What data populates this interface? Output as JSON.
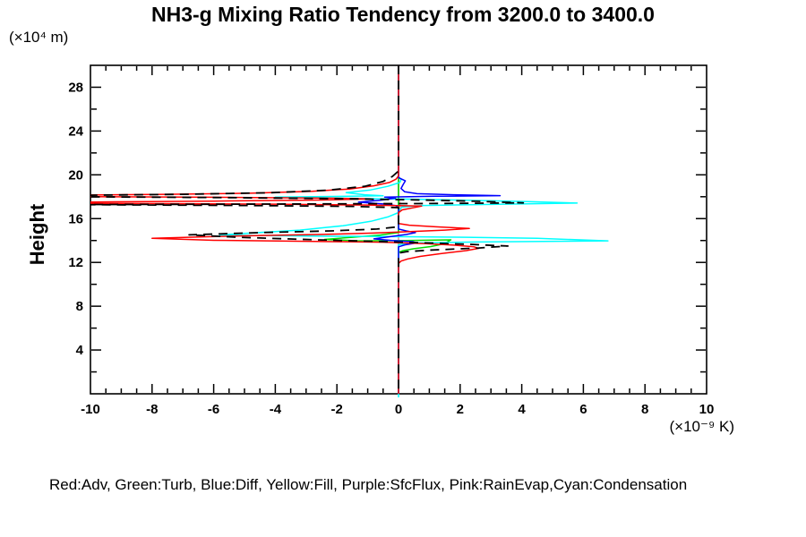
{
  "page": {
    "background": "#ffffff"
  },
  "chart_data": {
    "type": "line",
    "title": "NH3-g Mixing Ratio Tendency from 3200.0 to 3400.0",
    "ylabel": "Height",
    "y_axis_unit_label": "(×10⁴ m)",
    "x_axis_unit_label": "(×10⁻⁹ K)",
    "xlim": [
      -10,
      10
    ],
    "ylim": [
      0,
      30
    ],
    "x_major_tick_step": 2,
    "x_minor_tick_step": 0.5,
    "y_major_tick_step": 4,
    "y_minor_tick_step": 2,
    "x_tick_labels": [
      -10,
      -8,
      -6,
      -4,
      -2,
      0,
      2,
      4,
      6,
      8,
      10
    ],
    "y_tick_labels": [
      4,
      8,
      12,
      16,
      20,
      24,
      28
    ],
    "axis_color": "#000000",
    "zero_line": {
      "x": 0,
      "color": "#00ffff"
    },
    "legend_caption": "Red:Adv, Green:Turb, Blue:Diff, Yellow:Fill, Purple:SfcFlux, Pink:RainEvap,Cyan:Condensation",
    "legend_entries": [
      {
        "color_name": "Red",
        "label": "Adv",
        "color": "#ff0000"
      },
      {
        "color_name": "Green",
        "label": "Turb",
        "color": "#00dd00"
      },
      {
        "color_name": "Blue",
        "label": "Diff",
        "color": "#0000ff"
      },
      {
        "color_name": "Yellow",
        "label": "Fill",
        "color": "#ffff00"
      },
      {
        "color_name": "Purple",
        "label": "SfcFlux",
        "color": "#b000d0"
      },
      {
        "color_name": "Pink",
        "label": "RainEvap",
        "color": "#ff9aa8"
      },
      {
        "color_name": "Cyan",
        "label": "Condensation",
        "color": "#00ffff"
      }
    ],
    "series": [
      {
        "name": "fill-yellow",
        "color": "#ffff00",
        "width": 1.2,
        "dash": null,
        "points": [
          [
            0,
            30
          ],
          [
            0,
            0
          ]
        ]
      },
      {
        "name": "sfcflux-purple",
        "color": "#b000d0",
        "width": 1.2,
        "dash": null,
        "points": [
          [
            0,
            30
          ],
          [
            0,
            0
          ]
        ]
      },
      {
        "name": "rainevap-pink",
        "color": "#ff9aa8",
        "width": 1.5,
        "dash": null,
        "points": [
          [
            0,
            30
          ],
          [
            0,
            17.75
          ],
          [
            0.05,
            17.5
          ],
          [
            0.05,
            16.7
          ],
          [
            0,
            16.4
          ],
          [
            0,
            0
          ]
        ]
      },
      {
        "name": "turb-green",
        "color": "#00dd00",
        "width": 1.5,
        "dash": null,
        "points": [
          [
            0,
            30
          ],
          [
            0,
            14.72
          ],
          [
            -0.6,
            14.5
          ],
          [
            -1.5,
            14.3
          ],
          [
            -2.4,
            14.1
          ],
          [
            -1.3,
            13.97
          ],
          [
            0.2,
            14.0
          ],
          [
            1.7,
            14.06
          ],
          [
            1.6,
            13.9
          ],
          [
            1.45,
            13.68
          ],
          [
            1.05,
            13.45
          ],
          [
            0.5,
            13.25
          ],
          [
            0.15,
            13.08
          ],
          [
            0,
            12.92
          ],
          [
            0,
            0
          ]
        ]
      },
      {
        "name": "condensation-cyan",
        "color": "#00ffff",
        "width": 1.5,
        "dash": null,
        "points": [
          [
            0,
            30
          ],
          [
            0,
            19.85
          ],
          [
            0.08,
            19.55
          ],
          [
            0.04,
            19.3
          ],
          [
            -0.35,
            18.95
          ],
          [
            -0.9,
            18.62
          ],
          [
            -1.7,
            18.38
          ],
          [
            -1.1,
            18.18
          ],
          [
            -0.5,
            18.08
          ],
          [
            -4.0,
            17.97
          ],
          [
            -2.2,
            17.88
          ],
          [
            0.3,
            17.78
          ],
          [
            2.2,
            17.68
          ],
          [
            4.2,
            17.56
          ],
          [
            5.8,
            17.42
          ],
          [
            3.0,
            17.3
          ],
          [
            0.8,
            17.2
          ],
          [
            0.1,
            17.05
          ],
          [
            0,
            16.55
          ],
          [
            -0.35,
            16.15
          ],
          [
            -0.9,
            15.75
          ],
          [
            -1.8,
            15.35
          ],
          [
            -3.2,
            14.95
          ],
          [
            -4.8,
            14.68
          ],
          [
            -5.8,
            14.5
          ],
          [
            -3.0,
            14.4
          ],
          [
            -0.5,
            14.36
          ],
          [
            2.2,
            14.3
          ],
          [
            4.5,
            14.2
          ],
          [
            6.8,
            13.97
          ],
          [
            2.5,
            13.86
          ],
          [
            0.4,
            13.78
          ],
          [
            0,
            13.62
          ],
          [
            0,
            0
          ]
        ]
      },
      {
        "name": "diff-blue",
        "color": "#0000ff",
        "width": 1.5,
        "dash": null,
        "points": [
          [
            0,
            30
          ],
          [
            0,
            19.75
          ],
          [
            0.22,
            19.45
          ],
          [
            0.15,
            19.12
          ],
          [
            0.08,
            18.75
          ],
          [
            0.2,
            18.45
          ],
          [
            0.6,
            18.28
          ],
          [
            1.8,
            18.18
          ],
          [
            3.3,
            18.1
          ],
          [
            1.2,
            18.04
          ],
          [
            -0.45,
            17.97
          ],
          [
            -0.1,
            17.88
          ],
          [
            -0.6,
            17.68
          ],
          [
            -1.3,
            17.5
          ],
          [
            -0.5,
            17.34
          ],
          [
            -0.1,
            17.18
          ],
          [
            0,
            17.0
          ],
          [
            0,
            15.05
          ],
          [
            0.25,
            14.88
          ],
          [
            0.55,
            14.72
          ],
          [
            0.25,
            14.55
          ],
          [
            -0.3,
            14.35
          ],
          [
            -0.8,
            14.15
          ],
          [
            -0.2,
            14.0
          ],
          [
            0.45,
            13.9
          ],
          [
            0.6,
            13.78
          ],
          [
            0.2,
            13.6
          ],
          [
            0,
            13.42
          ],
          [
            0,
            0
          ]
        ]
      },
      {
        "name": "adv-red",
        "color": "#ff0000",
        "width": 1.5,
        "dash": null,
        "points": [
          [
            0,
            30
          ],
          [
            0,
            19.9
          ],
          [
            -0.08,
            19.6
          ],
          [
            -0.3,
            19.3
          ],
          [
            -0.8,
            19.0
          ],
          [
            -1.6,
            18.7
          ],
          [
            -2.8,
            18.5
          ],
          [
            -4.8,
            18.32
          ],
          [
            -7.5,
            18.22
          ],
          [
            -10.6,
            18.14
          ],
          [
            -10.6,
            18.02
          ],
          [
            -6.0,
            17.95
          ],
          [
            -2.0,
            17.86
          ],
          [
            -0.9,
            17.8
          ],
          [
            -2.5,
            17.7
          ],
          [
            -6.0,
            17.6
          ],
          [
            -10.6,
            17.5
          ],
          [
            -10.6,
            17.4
          ],
          [
            -4.0,
            17.32
          ],
          [
            -1.0,
            17.24
          ],
          [
            0.75,
            17.14
          ],
          [
            0.45,
            16.98
          ],
          [
            0.12,
            16.8
          ],
          [
            0,
            16.55
          ],
          [
            0,
            15.55
          ],
          [
            0.35,
            15.4
          ],
          [
            1.2,
            15.25
          ],
          [
            2.3,
            15.1
          ],
          [
            1.5,
            14.95
          ],
          [
            0.3,
            14.8
          ],
          [
            -0.8,
            14.68
          ],
          [
            -2.6,
            14.55
          ],
          [
            -5.2,
            14.42
          ],
          [
            -8.0,
            14.2
          ],
          [
            -6.0,
            14.02
          ],
          [
            -3.0,
            13.93
          ],
          [
            -0.5,
            13.85
          ],
          [
            0.9,
            13.72
          ],
          [
            1.8,
            13.58
          ],
          [
            2.45,
            13.42
          ],
          [
            2.6,
            13.28
          ],
          [
            2.2,
            13.08
          ],
          [
            1.4,
            12.82
          ],
          [
            0.7,
            12.55
          ],
          [
            0.3,
            12.32
          ],
          [
            0.08,
            12.12
          ],
          [
            0,
            11.9
          ],
          [
            0,
            0
          ]
        ]
      },
      {
        "name": "black-dashed-curve",
        "color": "#000000",
        "width": 1.8,
        "dash": "10,7",
        "points": [
          [
            0,
            30
          ],
          [
            0,
            20.35
          ],
          [
            -0.2,
            19.85
          ],
          [
            -0.5,
            19.4
          ],
          [
            -1.1,
            18.95
          ],
          [
            -2.3,
            18.6
          ],
          [
            -4.2,
            18.36
          ],
          [
            -7.0,
            18.22
          ],
          [
            -10.6,
            18.12
          ],
          [
            -10.6,
            18.0
          ],
          [
            -5.5,
            17.92
          ],
          [
            -1.5,
            17.8
          ],
          [
            0.8,
            17.7
          ],
          [
            2.6,
            17.58
          ],
          [
            4.05,
            17.44
          ],
          [
            1.0,
            17.38
          ],
          [
            -3.0,
            17.34
          ],
          [
            -10.6,
            17.28
          ],
          [
            -5.0,
            17.2
          ],
          [
            -1.5,
            17.12
          ],
          [
            0,
            17.0
          ],
          [
            0,
            15.25
          ],
          [
            -0.7,
            15.05
          ],
          [
            -2.2,
            14.88
          ],
          [
            -4.5,
            14.72
          ],
          [
            -6.8,
            14.52
          ],
          [
            -5.2,
            14.3
          ],
          [
            -2.8,
            14.08
          ],
          [
            -0.8,
            13.92
          ],
          [
            0.9,
            13.78
          ],
          [
            2.3,
            13.65
          ],
          [
            3.55,
            13.5
          ],
          [
            2.6,
            13.32
          ],
          [
            1.0,
            13.12
          ],
          [
            0.25,
            12.98
          ],
          [
            0,
            12.85
          ],
          [
            0,
            0
          ]
        ]
      }
    ]
  }
}
